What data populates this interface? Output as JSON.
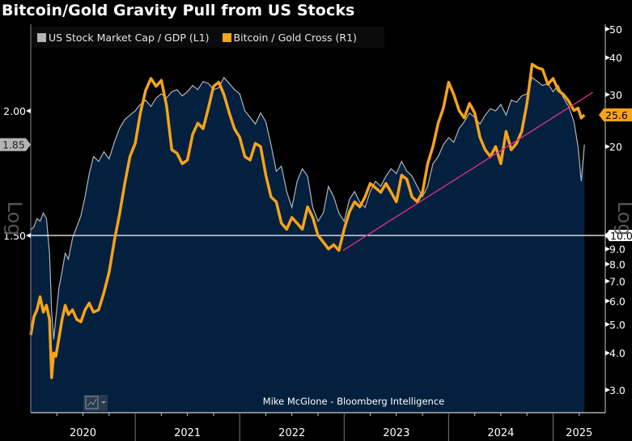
{
  "header": {
    "title": "Bitcoin/Gold Gravity Pull from US Stocks"
  },
  "legend": [
    {
      "label": "US Stock Market Cap / GDP (L1)",
      "color": "#b4b4b4"
    },
    {
      "label": "Bitcoin / Gold Cross (R1)",
      "color": "#f5a31a"
    }
  ],
  "credit": "Mike McGlone - Bloomberg Intelligence",
  "chart_control": {
    "icon": "line-chart-icon",
    "dropdown": "chevron-down-icon"
  },
  "colors": {
    "background": "#000000",
    "plot_fill": "#04203f",
    "stock_line": "#b4b4b4",
    "btc_line": "#f5a31a",
    "trendline": "#e0308a",
    "reference_line": "#ffffff"
  },
  "chart_data": {
    "type": "line",
    "title": "Bitcoin/Gold Gravity Pull from US Stocks",
    "xlabel": "",
    "x_tick_labels": [
      "2020",
      "2021",
      "2022",
      "2023",
      "2024",
      "2025"
    ],
    "x_range": [
      2020.0,
      2025.5
    ],
    "left_axis": {
      "label": "Log",
      "scale": "log",
      "range": [
        1.04,
        2.16
      ],
      "ticks": [
        "1.50",
        "2.00"
      ],
      "last_value_badge": "1.85"
    },
    "right_axis": {
      "label": "Log",
      "scale": "log",
      "range": [
        2.6,
        52
      ],
      "ticks": [
        "3.0",
        "4.0",
        "5.0",
        "6.0",
        "7.0",
        "8.0",
        "9.0",
        "10.0",
        "20",
        "30",
        "40",
        "50"
      ],
      "last_value_badge": "25.6",
      "reference_badge": "10.0"
    },
    "reference_line": {
      "axis": "right",
      "value": 10.0
    },
    "trendline": {
      "axis": "right",
      "start": {
        "x": 2022.99,
        "y": 8.9
      },
      "end": {
        "x": 2025.38,
        "y": 30.5
      }
    },
    "series": [
      {
        "name": "US Stock Market Cap / GDP (L1)",
        "axis": "left",
        "style": "area",
        "x": [
          2020.0,
          2020.03,
          2020.06,
          2020.09,
          2020.12,
          2020.15,
          2020.18,
          2020.2,
          2020.22,
          2020.24,
          2020.27,
          2020.3,
          2020.33,
          2020.36,
          2020.4,
          2020.44,
          2020.48,
          2020.52,
          2020.56,
          2020.6,
          2020.65,
          2020.7,
          2020.75,
          2020.8,
          2020.85,
          2020.9,
          2020.95,
          2021.0,
          2021.05,
          2021.1,
          2021.15,
          2021.2,
          2021.25,
          2021.3,
          2021.35,
          2021.4,
          2021.45,
          2021.5,
          2021.55,
          2021.6,
          2021.65,
          2021.7,
          2021.75,
          2021.8,
          2021.85,
          2021.9,
          2021.95,
          2022.0,
          2022.05,
          2022.1,
          2022.15,
          2022.2,
          2022.25,
          2022.3,
          2022.35,
          2022.4,
          2022.45,
          2022.5,
          2022.55,
          2022.6,
          2022.65,
          2022.7,
          2022.75,
          2022.8,
          2022.85,
          2022.9,
          2022.95,
          2023.0,
          2023.05,
          2023.1,
          2023.15,
          2023.2,
          2023.25,
          2023.3,
          2023.35,
          2023.4,
          2023.45,
          2023.5,
          2023.55,
          2023.6,
          2023.65,
          2023.7,
          2023.75,
          2023.8,
          2023.85,
          2023.9,
          2023.95,
          2024.0,
          2024.05,
          2024.1,
          2024.15,
          2024.2,
          2024.25,
          2024.3,
          2024.35,
          2024.4,
          2024.45,
          2024.5,
          2024.55,
          2024.6,
          2024.65,
          2024.7,
          2024.75,
          2024.8,
          2024.85,
          2024.9,
          2024.95,
          2025.0,
          2025.05,
          2025.1,
          2025.15,
          2025.2,
          2025.24,
          2025.27,
          2025.3
        ],
        "values": [
          1.52,
          1.53,
          1.56,
          1.55,
          1.58,
          1.56,
          1.44,
          1.26,
          1.18,
          1.24,
          1.33,
          1.38,
          1.44,
          1.42,
          1.49,
          1.53,
          1.57,
          1.64,
          1.73,
          1.8,
          1.78,
          1.82,
          1.79,
          1.86,
          1.92,
          1.96,
          1.98,
          2.0,
          2.03,
          2.05,
          2.02,
          2.06,
          2.08,
          2.06,
          2.09,
          2.1,
          2.07,
          2.09,
          2.12,
          2.1,
          2.14,
          2.13,
          2.1,
          2.11,
          2.16,
          2.13,
          2.1,
          2.08,
          2.0,
          1.97,
          1.94,
          1.99,
          1.95,
          1.85,
          1.74,
          1.76,
          1.66,
          1.6,
          1.7,
          1.75,
          1.72,
          1.6,
          1.55,
          1.58,
          1.68,
          1.64,
          1.58,
          1.55,
          1.63,
          1.66,
          1.62,
          1.6,
          1.66,
          1.7,
          1.68,
          1.72,
          1.75,
          1.73,
          1.78,
          1.74,
          1.72,
          1.68,
          1.64,
          1.68,
          1.77,
          1.8,
          1.85,
          1.88,
          1.86,
          1.92,
          1.95,
          1.99,
          1.97,
          1.94,
          1.98,
          2.01,
          2.0,
          2.03,
          1.98,
          2.05,
          2.04,
          2.07,
          2.08,
          2.16,
          2.14,
          2.12,
          2.13,
          2.09,
          2.12,
          2.06,
          2.02,
          1.95,
          1.84,
          1.7,
          1.85
        ]
      },
      {
        "name": "Bitcoin / Gold Cross (R1)",
        "axis": "right",
        "style": "line",
        "x": [
          2020.0,
          2020.03,
          2020.06,
          2020.09,
          2020.12,
          2020.15,
          2020.18,
          2020.2,
          2020.22,
          2020.24,
          2020.27,
          2020.3,
          2020.33,
          2020.36,
          2020.4,
          2020.44,
          2020.48,
          2020.52,
          2020.56,
          2020.6,
          2020.65,
          2020.7,
          2020.75,
          2020.8,
          2020.85,
          2020.9,
          2020.95,
          2021.0,
          2021.05,
          2021.1,
          2021.15,
          2021.2,
          2021.25,
          2021.3,
          2021.35,
          2021.4,
          2021.45,
          2021.5,
          2021.55,
          2021.6,
          2021.65,
          2021.7,
          2021.75,
          2021.8,
          2021.85,
          2021.9,
          2021.95,
          2022.0,
          2022.05,
          2022.1,
          2022.15,
          2022.2,
          2022.25,
          2022.3,
          2022.35,
          2022.4,
          2022.45,
          2022.5,
          2022.55,
          2022.6,
          2022.65,
          2022.7,
          2022.75,
          2022.8,
          2022.85,
          2022.9,
          2022.95,
          2023.0,
          2023.05,
          2023.1,
          2023.15,
          2023.2,
          2023.25,
          2023.3,
          2023.35,
          2023.4,
          2023.45,
          2023.5,
          2023.55,
          2023.6,
          2023.65,
          2023.7,
          2023.75,
          2023.8,
          2023.85,
          2023.9,
          2023.95,
          2024.0,
          2024.05,
          2024.1,
          2024.15,
          2024.2,
          2024.25,
          2024.3,
          2024.35,
          2024.4,
          2024.45,
          2024.5,
          2024.55,
          2024.6,
          2024.65,
          2024.7,
          2024.75,
          2024.8,
          2024.85,
          2024.9,
          2024.95,
          2025.0,
          2025.05,
          2025.1,
          2025.15,
          2025.2,
          2025.24,
          2025.27,
          2025.3
        ],
        "values": [
          4.6,
          5.3,
          5.6,
          6.2,
          5.5,
          5.8,
          5.2,
          3.3,
          4.0,
          3.9,
          4.5,
          5.2,
          5.8,
          5.4,
          5.6,
          5.2,
          5.1,
          5.6,
          5.9,
          5.5,
          5.6,
          6.4,
          7.5,
          9.6,
          11.8,
          15.0,
          18.5,
          20.5,
          26.0,
          31.0,
          34.0,
          32.0,
          33.5,
          27.5,
          19.5,
          19.0,
          17.5,
          18.0,
          22.0,
          24.0,
          23.0,
          27.0,
          32.0,
          33.0,
          30.0,
          26.0,
          23.0,
          21.5,
          18.5,
          18.0,
          20.5,
          20.0,
          16.0,
          13.5,
          13.0,
          11.0,
          10.5,
          11.5,
          11.0,
          10.5,
          12.5,
          11.5,
          10.0,
          9.5,
          9.0,
          9.3,
          8.9,
          10.5,
          12.0,
          13.0,
          12.5,
          13.5,
          15.0,
          14.5,
          14.0,
          15.0,
          14.0,
          13.0,
          16.0,
          15.5,
          13.5,
          13.0,
          14.0,
          17.5,
          20.0,
          24.0,
          27.0,
          33.0,
          30.0,
          26.5,
          25.0,
          28.0,
          26.0,
          21.5,
          19.5,
          18.5,
          20.0,
          17.5,
          22.5,
          19.5,
          20.5,
          22.5,
          28.0,
          38.0,
          37.0,
          36.5,
          32.5,
          34.0,
          31.0,
          30.0,
          28.5,
          26.5,
          27.0,
          25.0,
          25.6
        ]
      }
    ]
  }
}
